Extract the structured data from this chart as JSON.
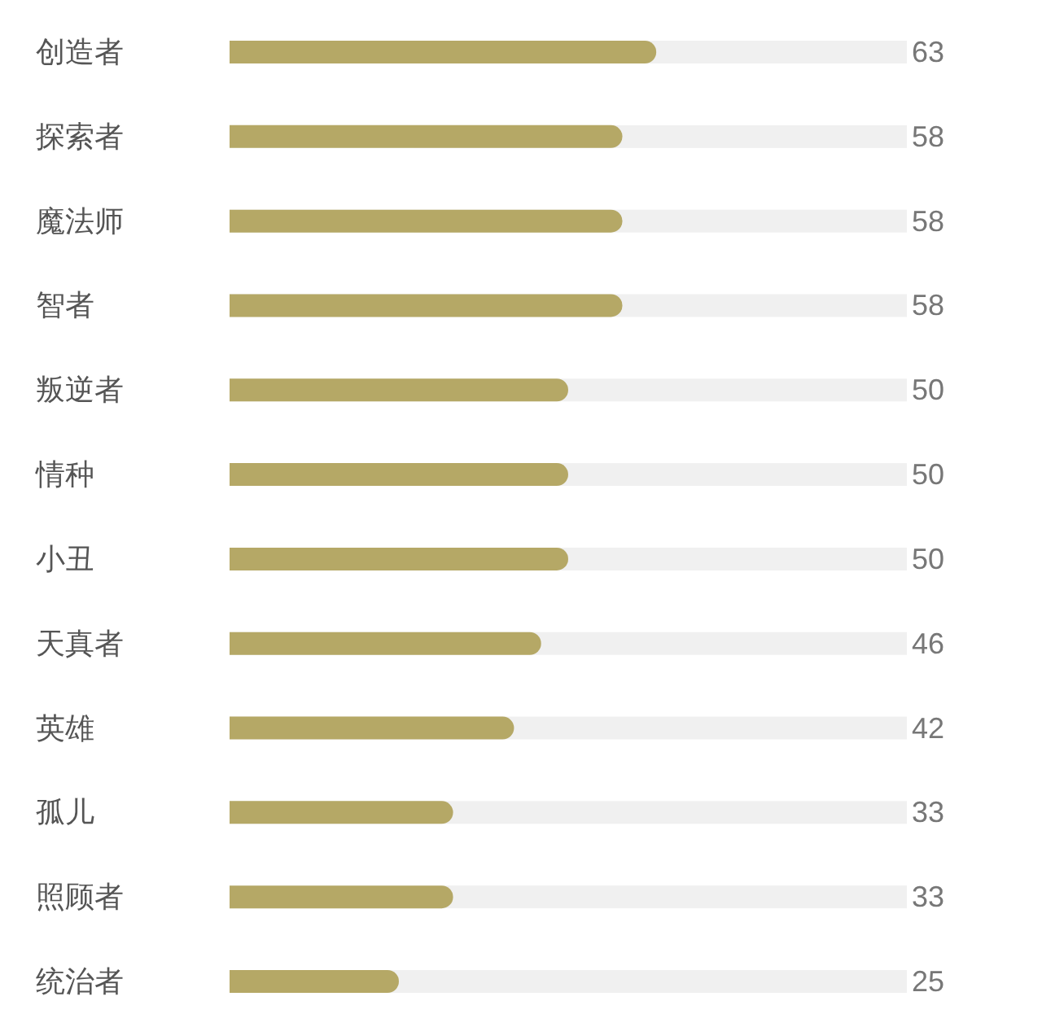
{
  "chart_data": {
    "type": "bar",
    "orientation": "horizontal",
    "categories": [
      "创造者",
      "探索者",
      "魔法师",
      "智者",
      "叛逆者",
      "情种",
      "小丑",
      "天真者",
      "英雄",
      "孤儿",
      "照顾者",
      "统治者"
    ],
    "values": [
      63,
      58,
      58,
      58,
      50,
      50,
      50,
      46,
      42,
      33,
      33,
      25
    ],
    "color": "#b5a866",
    "xlim": [
      0,
      100
    ],
    "data_labels": true,
    "tick_labels": "y"
  }
}
